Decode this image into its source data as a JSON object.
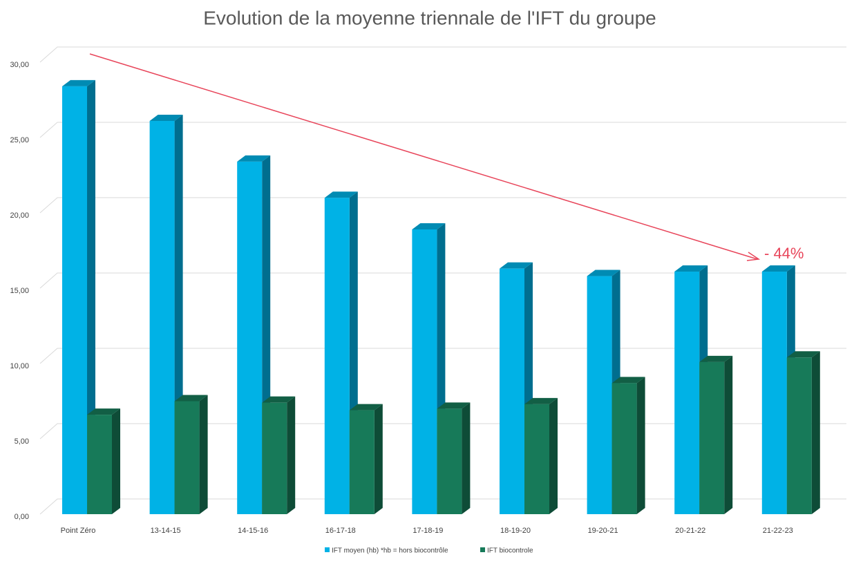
{
  "chart_data": {
    "type": "bar3d",
    "title": "Evolution de la moyenne triennale de l'IFT du groupe",
    "categories": [
      "Point Zéro",
      "13-14-15",
      "14-15-16",
      "16-17-18",
      "17-18-19",
      "18-19-20",
      "19-20-21",
      "20-21-22",
      "21-22-23"
    ],
    "series": [
      {
        "name": "IFT moyen (hb) *hb = hors biocontrôle",
        "color": "#00b2e6",
        "values": [
          28.4,
          26.1,
          23.4,
          21.0,
          18.9,
          16.3,
          15.8,
          16.1,
          16.1
        ]
      },
      {
        "name": "IFT biocontrole",
        "color": "#177a59",
        "values": [
          6.6,
          7.5,
          7.4,
          6.9,
          7.0,
          7.3,
          8.7,
          10.1,
          10.4
        ]
      }
    ],
    "ylim": [
      0,
      30
    ],
    "yticks": [
      {
        "value": 0,
        "label": "0,00"
      },
      {
        "value": 5,
        "label": "5,00"
      },
      {
        "value": 10,
        "label": "10,00"
      },
      {
        "value": 15,
        "label": "15,00"
      },
      {
        "value": 20,
        "label": "20,00"
      },
      {
        "value": 25,
        "label": "25,00"
      },
      {
        "value": 30,
        "label": "30,00"
      }
    ],
    "grid": true,
    "annotation": "- 44%",
    "legend": "bottom"
  }
}
